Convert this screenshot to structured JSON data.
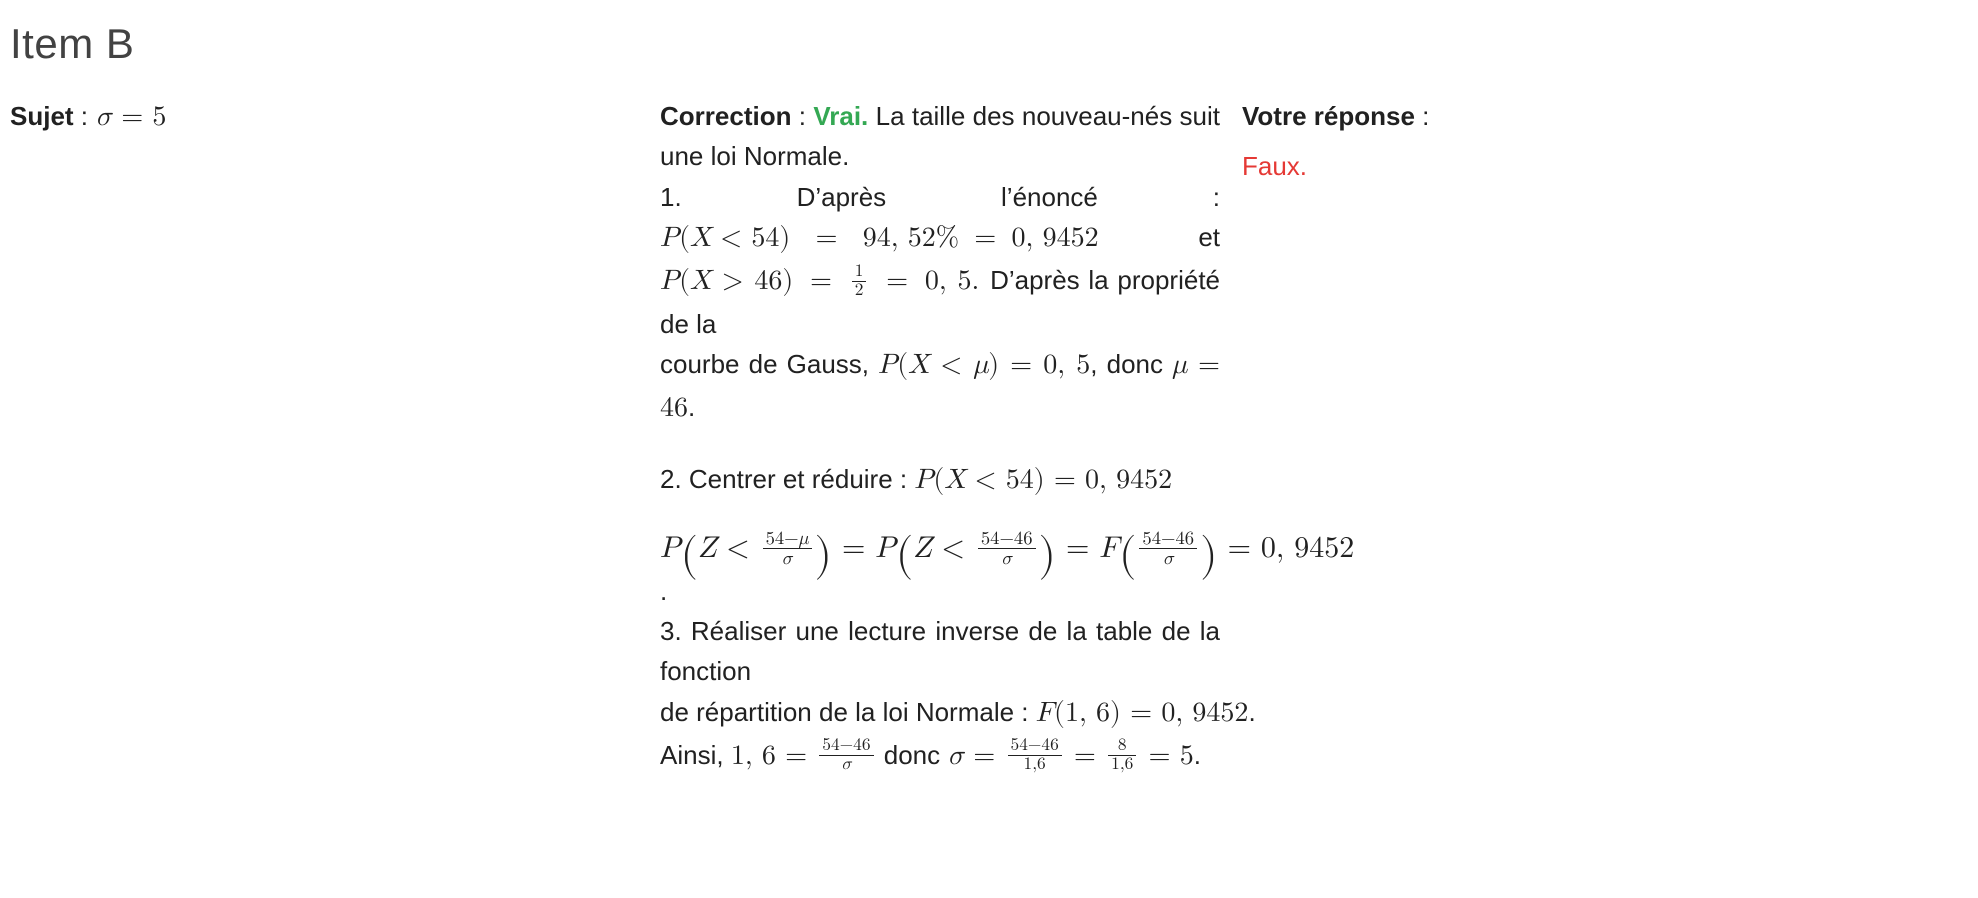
{
  "heading": "Item B",
  "colors": {
    "text": "#212121",
    "heading": "#424242",
    "vrai": "#34a853",
    "faux": "#e53935",
    "background": "#ffffff",
    "rule": "#212121"
  },
  "subject": {
    "label": "Sujet",
    "sep": " : ",
    "math_var": "σ",
    "math_rel": " = ",
    "math_val": "5"
  },
  "correction": {
    "label": "Correction",
    "sep": " : ",
    "verdict": "Vrai.",
    "intro_tail": " La taille des nouveau-nés suit une loi Normale.",
    "step1": {
      "l1_a": "1.",
      "l1_b": "D’après",
      "l1_c": "l’énoncé",
      "l1_d": ":",
      "l2_math_a": "P",
      "l2_math_b": "(",
      "l2_math_c": "X",
      "l2_math_d": " < ",
      "l2_math_e": "54",
      "l2_math_f": ")",
      "l2_math_g": "=",
      "l2_math_h": "94, 52%",
      "l2_math_i": "=",
      "l2_math_j": "0, 9452",
      "l2_tail": "et",
      "l3_pre": "P",
      "l3_open": "(",
      "l3_X": "X",
      "l3_gt": " > ",
      "l3_46": "46",
      "l3_close": ")",
      "l3_eq1": "=",
      "l3_frac_num": "1",
      "l3_frac_den": "2",
      "l3_eq2": "=",
      "l3_val": "0, 5",
      "l3_tail": " D’après la propriété de la",
      "l4_a": "courbe de Gauss, ",
      "l4_m_P": "P",
      "l4_m_open": "(",
      "l4_m_X": "X",
      "l4_m_lt": " < ",
      "l4_m_mu": "μ",
      "l4_m_close": ")",
      "l4_m_eq": " = ",
      "l4_m_val": "0, 5",
      "l4_b": ", donc ",
      "l4_m2_mu": "μ",
      "l4_m2_eq": " = ",
      "l4_m2_val": "46",
      "l4_c": "."
    },
    "step2": {
      "lead": "2. Centrer et réduire : ",
      "m_P": "P",
      "m_open": "(",
      "m_X": "X",
      "m_lt": " < ",
      "m_54": "54",
      "m_close": ")",
      "m_eq": " = ",
      "m_val": "0, 9452",
      "disp_P1": "P",
      "disp_Z": "Z",
      "disp_lt": " < ",
      "disp_f1_num_a": "54",
      "disp_f1_num_b": "−",
      "disp_f1_num_c": "μ",
      "disp_f1_den": "σ",
      "disp_eq1": " = ",
      "disp_P2": "P",
      "disp_f2_num_a": "54",
      "disp_f2_num_b": "−",
      "disp_f2_num_c": "46",
      "disp_f2_den": "σ",
      "disp_eq2": " = ",
      "disp_F": "F",
      "disp_f3_num_a": "54",
      "disp_f3_num_b": "−",
      "disp_f3_num_c": "46",
      "disp_f3_den": "σ",
      "disp_eq3": " = ",
      "disp_val": "0, 9452",
      "dot": "."
    },
    "step3": {
      "l1": "3. Réaliser une lecture inverse de la table de la fonction",
      "l2a": "de répartition de la loi Normale : ",
      "l2_F": "F",
      "l2_open": "(",
      "l2_arg": "1, 6",
      "l2_close": ")",
      "l2_eq": " = ",
      "l2_val": "0, 9452",
      "l2_dot": ".",
      "l3a": "Ainsi, ",
      "l3_16": "1, 6",
      "l3_eq1": " = ",
      "l3_f1_num_a": "54",
      "l3_f1_num_b": "−",
      "l3_f1_num_c": "46",
      "l3_f1_den": "σ",
      "l3_mid": " donc ",
      "l3_sigma": "σ",
      "l3_eq2": " = ",
      "l3_f2_num_a": "54",
      "l3_f2_num_b": "−",
      "l3_f2_num_c": "46",
      "l3_f2_den": "1,6",
      "l3_eq3": " = ",
      "l3_f3_num": "8",
      "l3_f3_den": "1,6",
      "l3_eq4": " = ",
      "l3_val": "5",
      "l3_dot": "."
    }
  },
  "answer": {
    "label": "Votre réponse",
    "sep": " :",
    "value": "Faux."
  }
}
